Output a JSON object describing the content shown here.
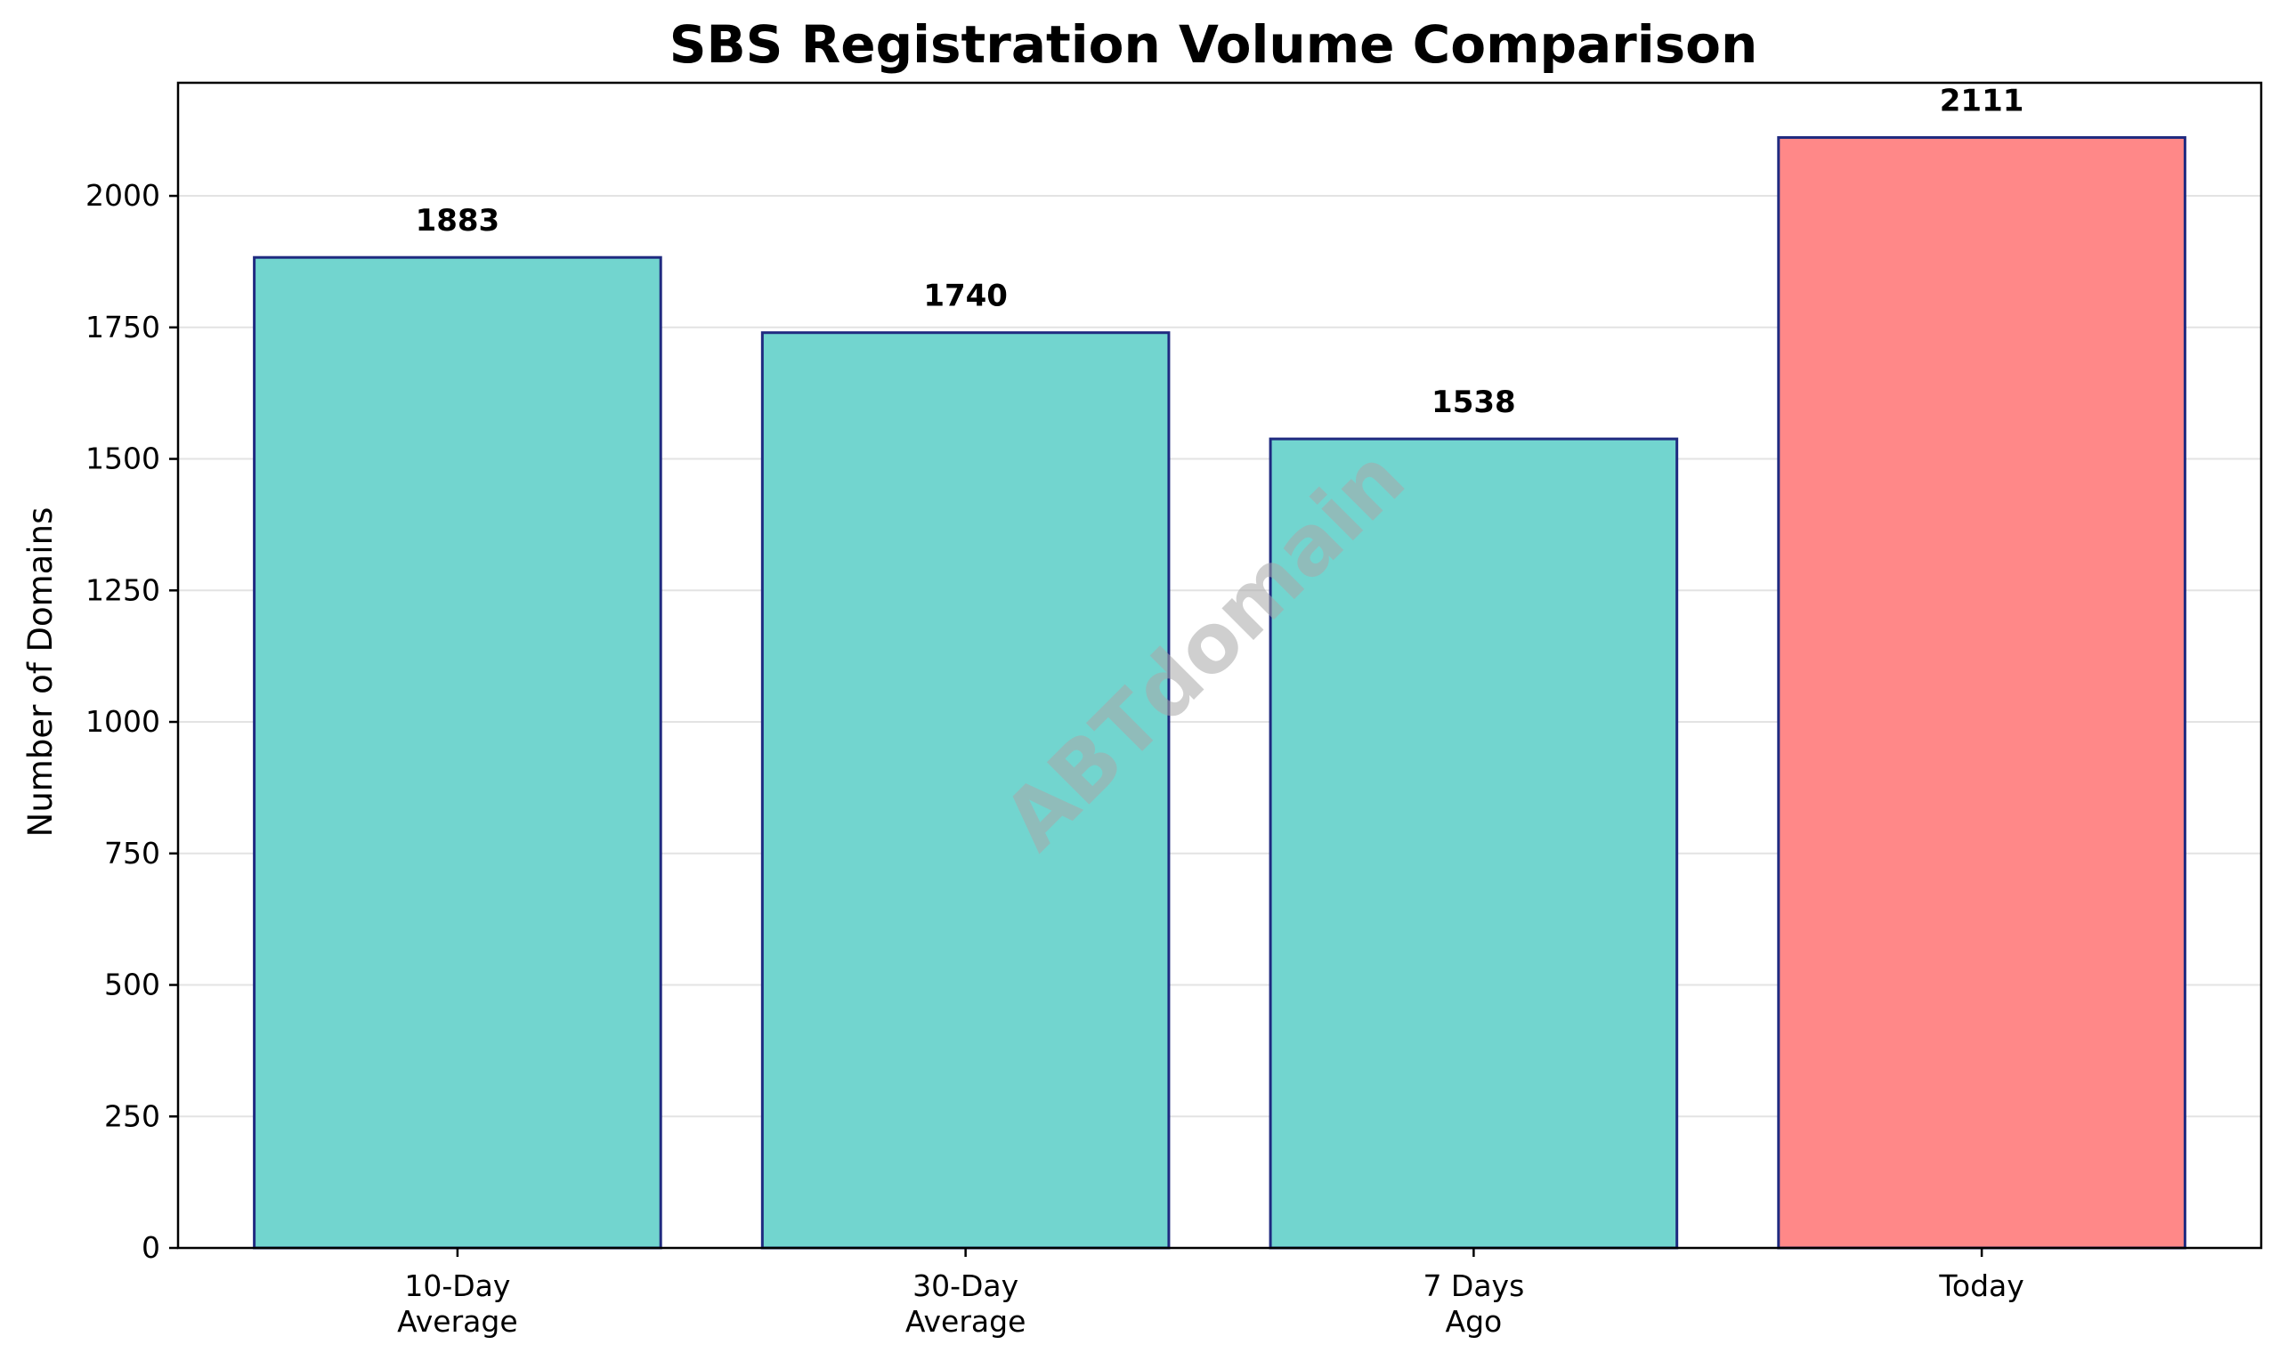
{
  "chart_data": {
    "type": "bar",
    "title": "SBS Registration Volume Comparison",
    "xlabel": "",
    "ylabel": "Number of Domains",
    "categories": [
      "10-Day\nAverage",
      "30-Day\nAverage",
      "7 Days\nAgo",
      "Today"
    ],
    "values": [
      1883,
      1740,
      1538,
      2111
    ],
    "value_labels": [
      "1883",
      "1740",
      "1538",
      "2111"
    ],
    "ylim": [
      0,
      2215
    ],
    "yticks": [
      0,
      250,
      500,
      750,
      1000,
      1250,
      1500,
      1750,
      2000
    ],
    "bar_colors": [
      "#72d5cf",
      "#72d5cf",
      "#72d5cf",
      "#ff8888"
    ],
    "edge_color": "#1f2a80",
    "grid": "horizontal",
    "watermark": "ABTdomain"
  }
}
